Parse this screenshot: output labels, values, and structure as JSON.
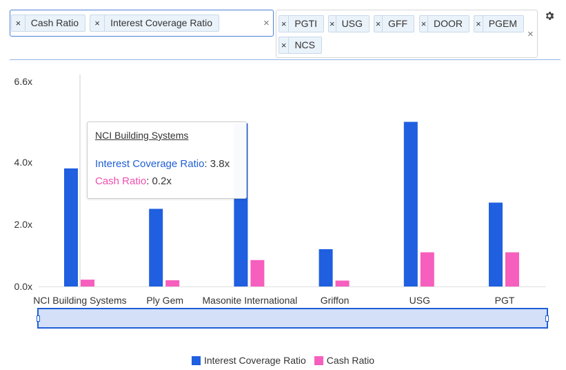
{
  "metric_selector": {
    "chips": [
      {
        "label": "Cash Ratio",
        "x": 16,
        "w": 108
      },
      {
        "label": "Interest Coverage Ratio",
        "x": 130,
        "w": 188
      }
    ],
    "remove_symbol": "×",
    "clear_symbol": "×"
  },
  "ticker_selector": {
    "chips": [
      {
        "label": "PGTI"
      },
      {
        "label": "USG"
      },
      {
        "label": "GFF"
      },
      {
        "label": "DOOR"
      },
      {
        "label": "PGEM"
      },
      {
        "label": "NCS"
      }
    ],
    "remove_symbol": "×",
    "clear_symbol": "×"
  },
  "colors": {
    "interest_coverage": "#1f5fe0",
    "cash_ratio": "#f65fbd",
    "navigator_fill": "#d3e0f8",
    "navigator_border": "#1f5fd6"
  },
  "tooltip": {
    "title": "NCI Building Systems",
    "rows": [
      {
        "series": "Interest Coverage Ratio",
        "value": "3.8x"
      },
      {
        "series": "Cash Ratio",
        "value": "0.2x"
      }
    ]
  },
  "chart_data": {
    "type": "bar",
    "title": "",
    "xlabel": "",
    "ylabel": "",
    "categories": [
      "NCI Building Systems",
      "Ply Gem",
      "Masonite International",
      "Griffon",
      "USG",
      "PGT"
    ],
    "series": [
      {
        "name": "Interest Coverage Ratio",
        "values": [
          3.8,
          2.5,
          5.25,
          1.2,
          5.3,
          2.7
        ]
      },
      {
        "name": "Cash Ratio",
        "values": [
          0.22,
          0.2,
          0.85,
          0.19,
          1.1,
          1.1
        ]
      }
    ],
    "y_ticks": [
      {
        "value": 0,
        "label": "0.0x"
      },
      {
        "value": 2,
        "label": "2.0x"
      },
      {
        "value": 4,
        "label": "4.0x"
      },
      {
        "value": 6.6,
        "label": "6.6x"
      }
    ],
    "ylim": [
      0,
      6.6
    ],
    "legend": "bottom",
    "grid": false,
    "hovered_category": "NCI Building Systems"
  }
}
